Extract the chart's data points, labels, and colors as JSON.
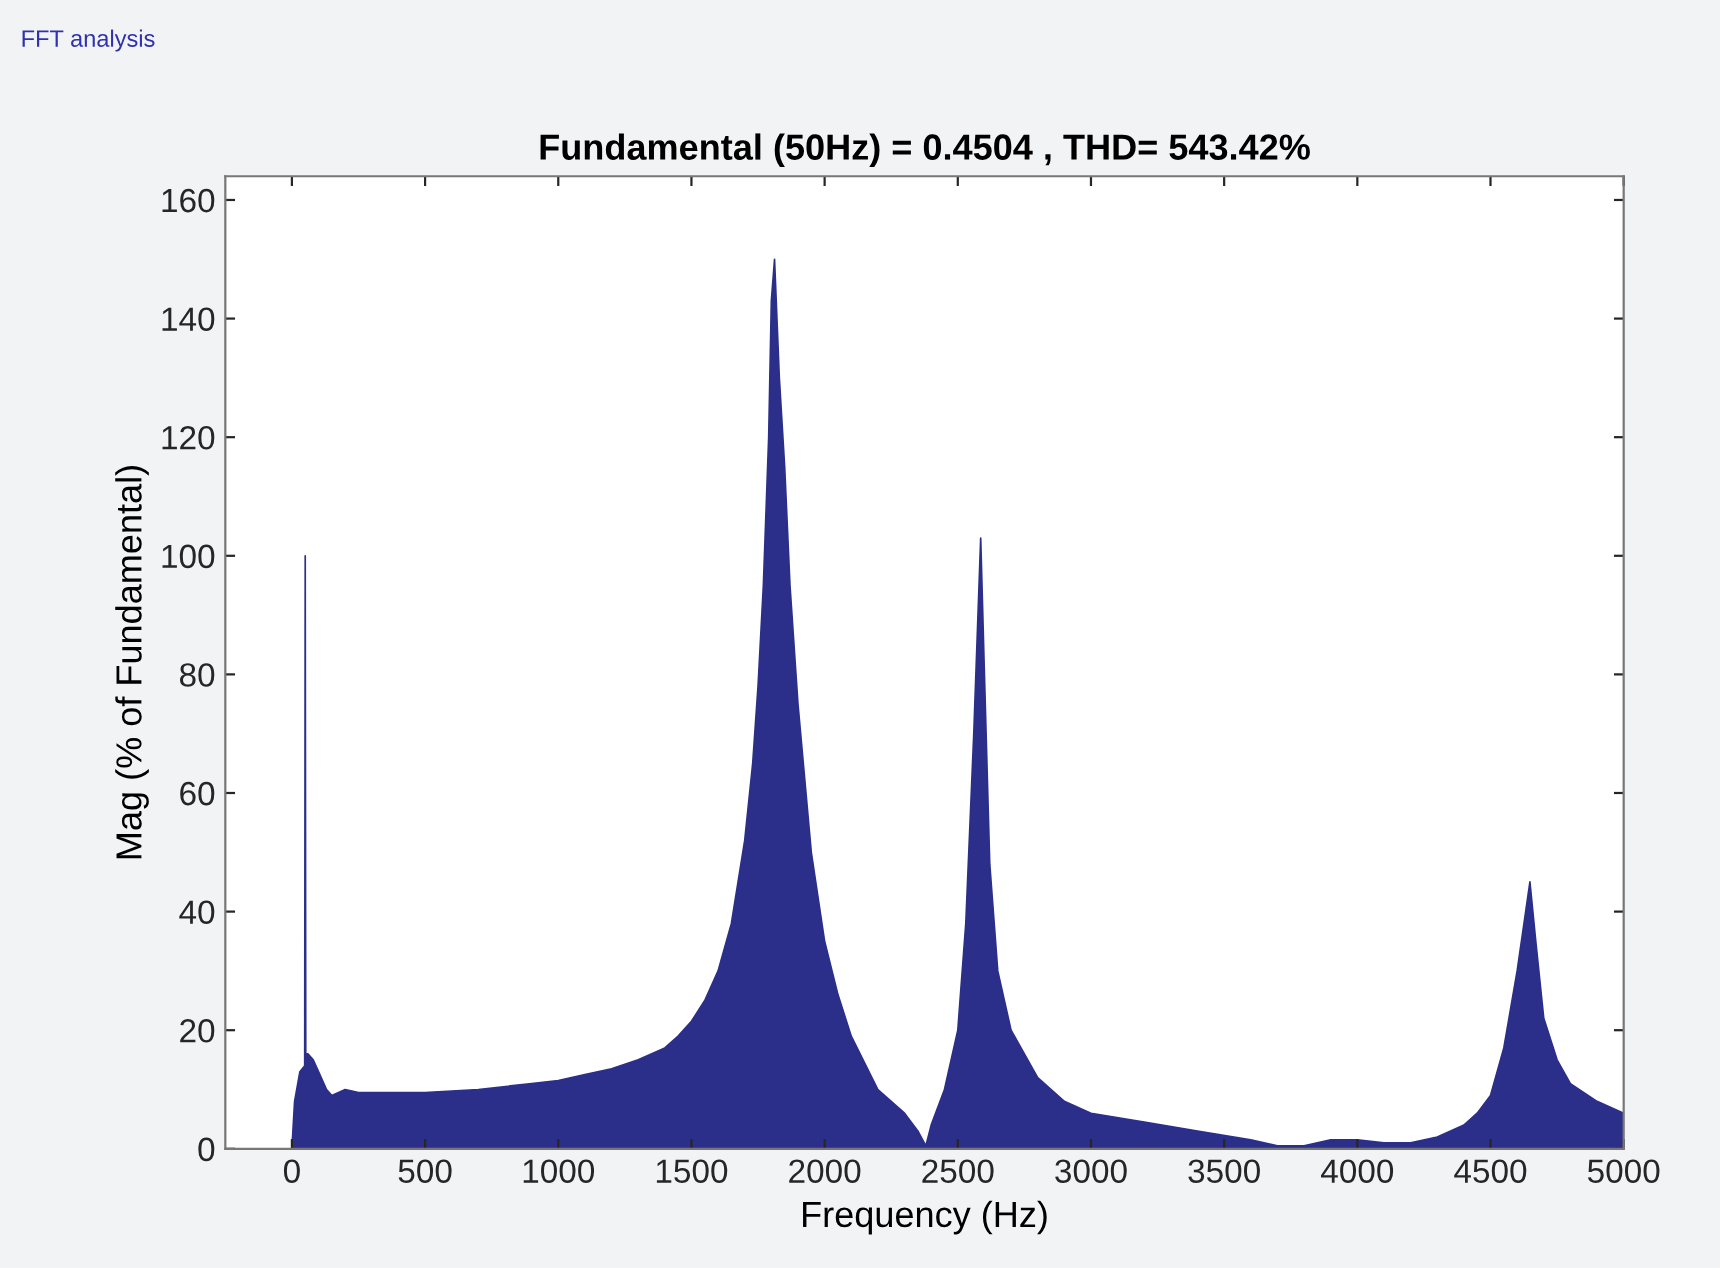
{
  "chart_data": {
    "type": "area",
    "title": "Fundamental (50Hz) = 0.4504 , THD= 543.42%",
    "xlabel": "Frequency (Hz)",
    "ylabel": "Mag (% of Fundamental)",
    "annotations": [
      "FFT analysis"
    ],
    "series": [
      {
        "color": "#2b2f8a",
        "x": [
          0,
          10,
          30,
          48,
          50,
          52,
          60,
          80,
          100,
          130,
          150,
          200,
          250,
          300,
          500,
          700,
          900,
          1000,
          1100,
          1200,
          1300,
          1400,
          1450,
          1500,
          1550,
          1600,
          1650,
          1700,
          1730,
          1750,
          1770,
          1790,
          1800,
          1812,
          1830,
          1850,
          1870,
          1900,
          1950,
          2000,
          2050,
          2100,
          2200,
          2300,
          2350,
          2380,
          2400,
          2450,
          2500,
          2530,
          2560,
          2586,
          2600,
          2620,
          2650,
          2700,
          2800,
          2900,
          3000,
          3200,
          3400,
          3600,
          3700,
          3800,
          3900,
          4000,
          4100,
          4200,
          4300,
          4400,
          4450,
          4500,
          4550,
          4600,
          4648,
          4670,
          4700,
          4750,
          4800,
          4900,
          5000
        ],
        "values": [
          0,
          8,
          13,
          14,
          100,
          16,
          16,
          15,
          13,
          10,
          9,
          10,
          9.5,
          9.5,
          9.5,
          10,
          11,
          11.5,
          12.5,
          13.5,
          15,
          17,
          19,
          21.5,
          25,
          30,
          38,
          52,
          65,
          78,
          95,
          120,
          143,
          150,
          130,
          115,
          95,
          75,
          50,
          35,
          26,
          19,
          10,
          6,
          3,
          0.5,
          4,
          10,
          20,
          38,
          70,
          103,
          80,
          48,
          30,
          20,
          12,
          8,
          6,
          4.5,
          3,
          1.5,
          0.5,
          0.5,
          1.5,
          1.5,
          1,
          1,
          2,
          4,
          6,
          9,
          17,
          30,
          45,
          35,
          22,
          15,
          11,
          8,
          6
        ]
      }
    ],
    "xlim": [
      -250,
      5000
    ],
    "xticks": [
      0,
      500,
      1000,
      1500,
      2000,
      2500,
      3000,
      3500,
      4000,
      4500,
      5000
    ],
    "ylim": [
      0,
      164
    ],
    "yticks": [
      0,
      20,
      40,
      60,
      80,
      100,
      120,
      140,
      160
    ]
  }
}
